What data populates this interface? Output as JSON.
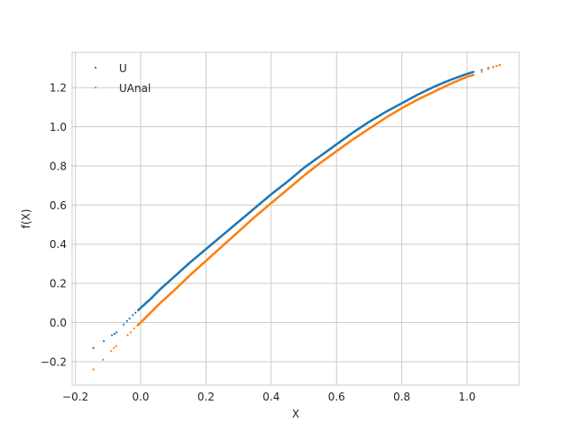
{
  "chart_data": {
    "type": "scatter",
    "title": "",
    "xlabel": "X",
    "ylabel": "f(X)",
    "xlim": [
      -0.21,
      1.16
    ],
    "ylim": [
      -0.32,
      1.38
    ],
    "xticks": [
      -0.2,
      0.0,
      0.2,
      0.4,
      0.6,
      0.8,
      1.0
    ],
    "xtick_labels": [
      "−0.2",
      "0.0",
      "0.2",
      "0.4",
      "0.6",
      "0.8",
      "1.0"
    ],
    "yticks": [
      -0.2,
      0.0,
      0.2,
      0.4,
      0.6,
      0.8,
      1.0,
      1.2
    ],
    "ytick_labels": [
      "−0.2",
      "0.0",
      "0.2",
      "0.4",
      "0.6",
      "0.8",
      "1.0",
      "1.2"
    ],
    "grid": true,
    "legend": {
      "placement": "top-left"
    },
    "series": [
      {
        "name": "U",
        "color": "#1f77b4",
        "x": [
          -0.145,
          -0.113,
          -0.088,
          -0.08,
          -0.074,
          -0.052,
          -0.042,
          -0.034,
          -0.024,
          -0.016,
          -0.008,
          0.0,
          0.03,
          0.06,
          0.1,
          0.15,
          0.2,
          0.25,
          0.3,
          0.35,
          0.4,
          0.45,
          0.5,
          0.55,
          0.6,
          0.65,
          0.7,
          0.75,
          0.8,
          0.85,
          0.9,
          0.95,
          1.0,
          1.02,
          1.045,
          1.065,
          1.08,
          1.09,
          1.1
        ],
        "y": [
          -0.13,
          -0.095,
          -0.065,
          -0.058,
          -0.05,
          -0.01,
          0.008,
          0.02,
          0.038,
          0.05,
          0.062,
          0.075,
          0.12,
          0.17,
          0.23,
          0.305,
          0.375,
          0.445,
          0.515,
          0.585,
          0.655,
          0.72,
          0.79,
          0.85,
          0.91,
          0.97,
          1.025,
          1.075,
          1.12,
          1.165,
          1.205,
          1.24,
          1.27,
          1.28,
          1.29,
          1.3,
          1.305,
          1.31,
          1.315
        ]
      },
      {
        "name": "UAnal",
        "color": "#ff7f0e",
        "x": [
          -0.145,
          -0.115,
          -0.09,
          -0.082,
          -0.075,
          -0.04,
          -0.03,
          -0.02,
          -0.01,
          0.0,
          0.03,
          0.06,
          0.1,
          0.15,
          0.2,
          0.25,
          0.3,
          0.35,
          0.4,
          0.45,
          0.5,
          0.55,
          0.6,
          0.65,
          0.7,
          0.75,
          0.8,
          0.85,
          0.9,
          0.95,
          1.0,
          1.02,
          1.045,
          1.065,
          1.08,
          1.09,
          1.1
        ],
        "y": [
          -0.24,
          -0.19,
          -0.145,
          -0.13,
          -0.12,
          -0.065,
          -0.05,
          -0.03,
          -0.015,
          0.0,
          0.05,
          0.1,
          0.16,
          0.24,
          0.315,
          0.39,
          0.465,
          0.54,
          0.61,
          0.68,
          0.75,
          0.815,
          0.875,
          0.935,
          0.99,
          1.045,
          1.095,
          1.14,
          1.18,
          1.22,
          1.255,
          1.265,
          1.28,
          1.295,
          1.305,
          1.31,
          1.315
        ]
      }
    ]
  }
}
